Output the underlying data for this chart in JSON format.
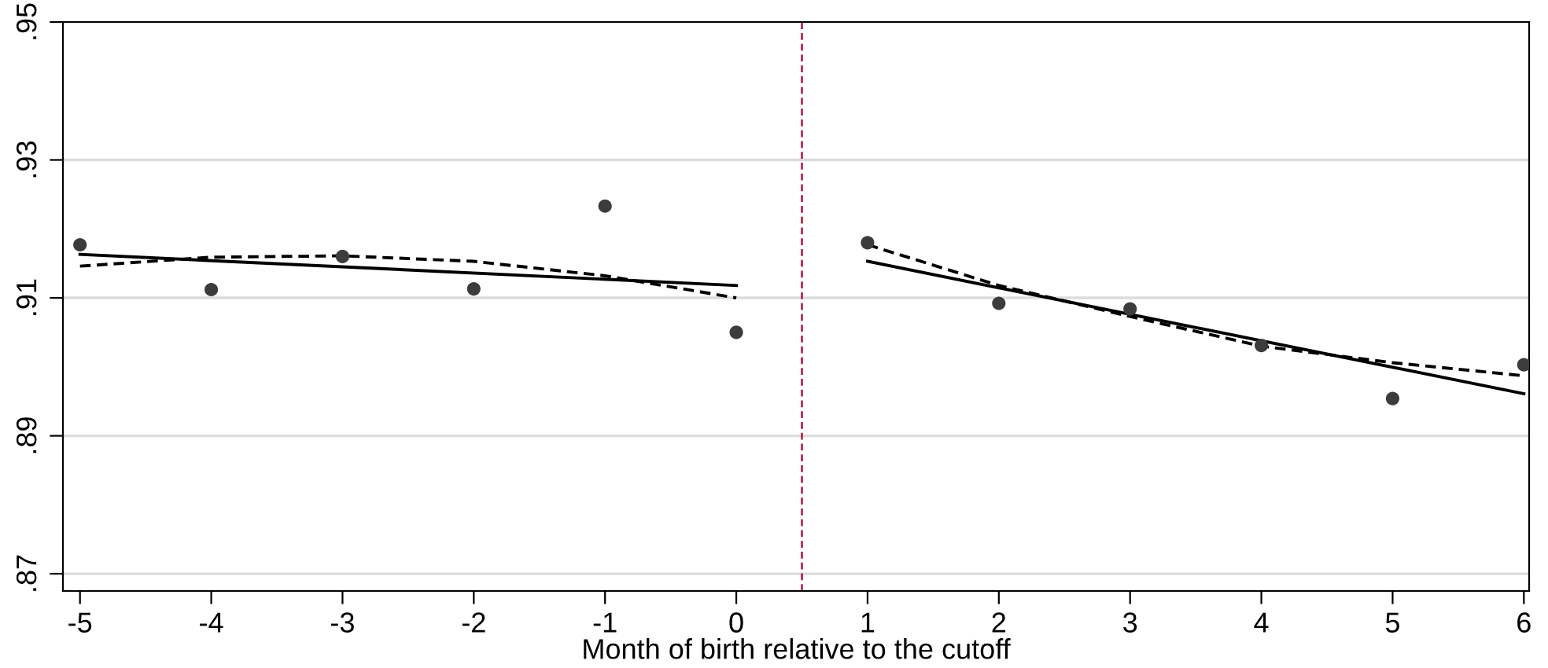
{
  "chart_data": {
    "type": "scatter",
    "xlabel": "Month of birth relative to the cutoff",
    "xlim": [
      -5.13,
      6.04
    ],
    "ylim": [
      0.8675,
      0.95
    ],
    "xticks": [
      -5,
      -4,
      -3,
      -2,
      -1,
      0,
      1,
      2,
      3,
      4,
      5,
      6
    ],
    "yticks": [
      {
        "value": 0.87,
        "label": ".87"
      },
      {
        "value": 0.89,
        "label": ".89"
      },
      {
        "value": 0.91,
        "label": ".91"
      },
      {
        "value": 0.93,
        "label": ".93"
      },
      {
        "value": 0.95,
        "label": ".95"
      }
    ],
    "grid": "y",
    "legend": false,
    "ref_lines": [
      {
        "axis": "x",
        "value": 0.5,
        "color": "#b0143c",
        "line_style": "dashed"
      }
    ],
    "series": [
      {
        "color": "#3c3c3c",
        "marker": "circle",
        "x": [
          -5,
          -4,
          -3,
          -2,
          -1,
          0,
          1,
          2,
          3,
          4,
          5,
          6
        ],
        "values": [
          0.9177,
          0.9112,
          0.916,
          0.9113,
          0.9233,
          0.905,
          0.918,
          0.9092,
          0.9084,
          0.9031,
          0.8954,
          0.9003
        ]
      },
      {
        "type": "line",
        "color": "#000000",
        "line_style": "solid",
        "x": [
          -5,
          0
        ],
        "values": [
          0.9163,
          0.9118
        ]
      },
      {
        "type": "line",
        "color": "#000000",
        "line_style": "dashed",
        "x": [
          -5,
          -4,
          -3,
          -2,
          -1,
          0
        ],
        "values": [
          0.9146,
          0.9159,
          0.9161,
          0.9153,
          0.9132,
          0.91
        ]
      },
      {
        "type": "line",
        "color": "#000000",
        "line_style": "solid",
        "x": [
          1,
          6
        ],
        "values": [
          0.9153,
          0.8961
        ]
      },
      {
        "type": "line",
        "color": "#000000",
        "line_style": "dashed",
        "x": [
          1,
          2,
          3,
          4,
          5,
          6
        ],
        "values": [
          0.9177,
          0.9118,
          0.9073,
          0.903,
          0.9006,
          0.8987
        ]
      }
    ]
  }
}
